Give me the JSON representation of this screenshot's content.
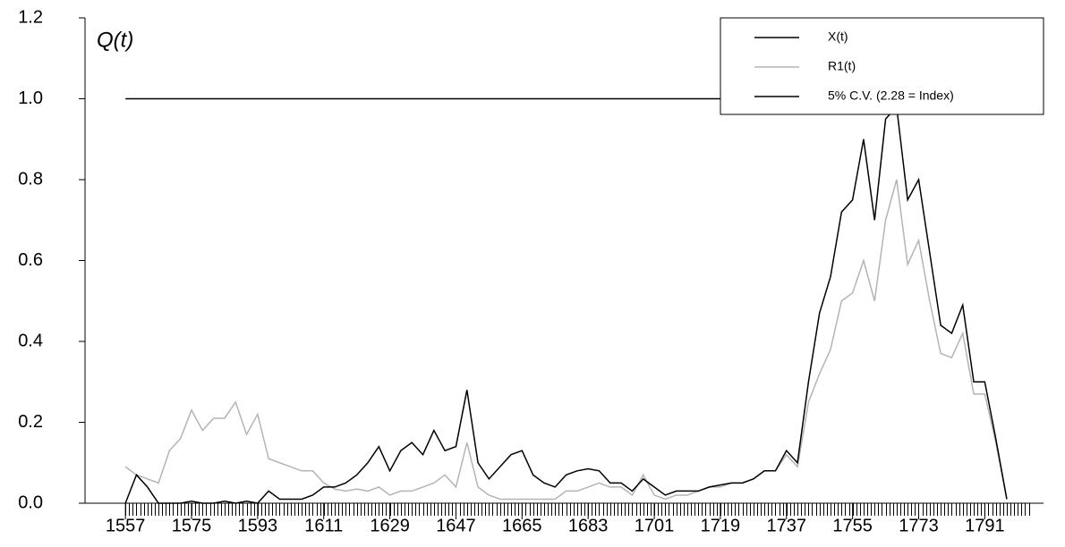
{
  "chart_data": {
    "type": "line",
    "title": "Q(t)",
    "x": [
      1557,
      1560,
      1563,
      1566,
      1569,
      1572,
      1575,
      1578,
      1581,
      1584,
      1587,
      1590,
      1593,
      1596,
      1599,
      1602,
      1605,
      1608,
      1611,
      1614,
      1617,
      1620,
      1623,
      1626,
      1629,
      1632,
      1635,
      1638,
      1641,
      1644,
      1647,
      1650,
      1653,
      1656,
      1659,
      1662,
      1665,
      1668,
      1671,
      1674,
      1677,
      1680,
      1683,
      1686,
      1689,
      1692,
      1695,
      1698,
      1701,
      1704,
      1707,
      1710,
      1713,
      1716,
      1719,
      1722,
      1725,
      1728,
      1731,
      1734,
      1737,
      1740,
      1743,
      1746,
      1749,
      1752,
      1755,
      1758,
      1761,
      1764,
      1767,
      1770,
      1773,
      1776,
      1779,
      1782,
      1785,
      1788,
      1791,
      1794,
      1797
    ],
    "series": [
      {
        "name": "X(t)",
        "color": "#000000",
        "values": [
          0.0,
          0.07,
          0.04,
          0.0,
          0.0,
          0.0,
          0.005,
          0.0,
          0.0,
          0.005,
          0.0,
          0.005,
          0.0,
          0.03,
          0.01,
          0.01,
          0.01,
          0.02,
          0.04,
          0.04,
          0.05,
          0.07,
          0.1,
          0.14,
          0.08,
          0.13,
          0.15,
          0.12,
          0.18,
          0.13,
          0.14,
          0.28,
          0.1,
          0.06,
          0.09,
          0.12,
          0.13,
          0.07,
          0.05,
          0.04,
          0.07,
          0.08,
          0.085,
          0.08,
          0.05,
          0.05,
          0.03,
          0.06,
          0.04,
          0.02,
          0.03,
          0.03,
          0.03,
          0.04,
          0.045,
          0.05,
          0.05,
          0.06,
          0.08,
          0.08,
          0.13,
          0.1,
          0.3,
          0.47,
          0.56,
          0.72,
          0.75,
          0.9,
          0.7,
          0.95,
          0.98,
          0.75,
          0.8,
          0.62,
          0.44,
          0.42,
          0.49,
          0.3,
          0.3,
          0.16,
          0.01
        ]
      },
      {
        "name": "R1(t)",
        "color": "#b4b4b4",
        "values": [
          0.09,
          0.07,
          0.06,
          0.05,
          0.13,
          0.16,
          0.23,
          0.18,
          0.21,
          0.21,
          0.25,
          0.17,
          0.22,
          0.11,
          0.1,
          0.09,
          0.08,
          0.08,
          0.05,
          0.035,
          0.03,
          0.035,
          0.03,
          0.04,
          0.02,
          0.03,
          0.03,
          0.04,
          0.05,
          0.07,
          0.04,
          0.15,
          0.04,
          0.02,
          0.01,
          0.01,
          0.01,
          0.01,
          0.01,
          0.01,
          0.03,
          0.03,
          0.04,
          0.05,
          0.04,
          0.04,
          0.02,
          0.07,
          0.02,
          0.01,
          0.02,
          0.02,
          0.03,
          0.04,
          0.04,
          0.05,
          0.05,
          0.06,
          0.08,
          0.08,
          0.12,
          0.09,
          0.25,
          0.32,
          0.38,
          0.5,
          0.52,
          0.6,
          0.5,
          0.7,
          0.8,
          0.59,
          0.65,
          0.5,
          0.37,
          0.36,
          0.42,
          0.27,
          0.27,
          0.15,
          0.01
        ]
      },
      {
        "name": "5% C.V. (2.28 = Index)",
        "color": "#000000",
        "x": [
          1557,
          1797
        ],
        "values": [
          1,
          1
        ]
      }
    ],
    "xlim": [
      1546,
      1807
    ],
    "xticks": [
      1557,
      1575,
      1593,
      1611,
      1629,
      1647,
      1665,
      1683,
      1701,
      1719,
      1737,
      1755,
      1773,
      1791
    ],
    "ylim": [
      0,
      1.2
    ],
    "yticks": [
      {
        "value": 0,
        "label": "0.0"
      },
      0.2,
      0.4,
      0.6,
      0.8,
      {
        "value": 1,
        "label": "1.0"
      },
      1.2
    ],
    "legend": "top-right"
  }
}
